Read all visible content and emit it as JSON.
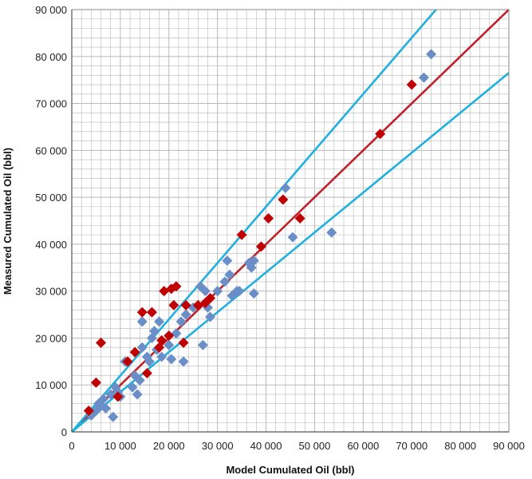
{
  "chart_data": {
    "type": "scatter",
    "title": "",
    "xlabel": "Model Cumulated Oil (bbl)",
    "ylabel": "Measured  Cumulated Oil (bbl)",
    "xlim": [
      0,
      90000
    ],
    "ylim": [
      0,
      90000
    ],
    "x_ticks": [
      0,
      10000,
      20000,
      30000,
      40000,
      50000,
      60000,
      70000,
      80000,
      90000
    ],
    "y_ticks": [
      0,
      10000,
      20000,
      30000,
      40000,
      50000,
      60000,
      70000,
      80000,
      90000
    ],
    "x_tick_labels": [
      "0",
      "10 000",
      "20 000",
      "30 000",
      "40 000",
      "50 000",
      "60 000",
      "70 000",
      "80 000",
      "90 000"
    ],
    "y_tick_labels": [
      "0",
      "10 000",
      "20 000",
      "30 000",
      "40 000",
      "50 000",
      "60 000",
      "70 000",
      "80 000",
      "90 000"
    ],
    "minor_grid_step": 2000,
    "grid": true,
    "legend": "none",
    "colors": {
      "series_blue": "#6a8fc8",
      "series_red": "#c00000",
      "parity_line": "#c0202a",
      "bound_lines": "#1fb0e0",
      "grid": "#b8b8b8"
    },
    "lines": [
      {
        "slope": 1.0,
        "color_key": "parity_line",
        "from_x": 0,
        "to_x": 90000
      },
      {
        "slope": 1.2,
        "color_key": "bound_lines",
        "from_x": 0,
        "to_x": 75000
      },
      {
        "slope": 0.85,
        "color_key": "bound_lines",
        "from_x": 0,
        "to_x": 90000
      }
    ],
    "series": [
      {
        "marker": "diamond",
        "color_key": "series_blue",
        "points": [
          [
            4000,
            3500
          ],
          [
            5000,
            4500
          ],
          [
            5500,
            6000
          ],
          [
            6000,
            5500
          ],
          [
            6500,
            7000
          ],
          [
            7000,
            5000
          ],
          [
            8000,
            8000
          ],
          [
            8500,
            3200
          ],
          [
            9000,
            9500
          ],
          [
            9500,
            8500
          ],
          [
            10000,
            7500
          ],
          [
            11000,
            15000
          ],
          [
            12500,
            9500
          ],
          [
            13000,
            12000
          ],
          [
            13500,
            8000
          ],
          [
            14000,
            11000
          ],
          [
            14500,
            23500
          ],
          [
            14500,
            18000
          ],
          [
            15500,
            16000
          ],
          [
            16000,
            15000
          ],
          [
            16500,
            20000
          ],
          [
            17000,
            21500
          ],
          [
            17500,
            17500
          ],
          [
            18000,
            23500
          ],
          [
            18500,
            16000
          ],
          [
            20000,
            18500
          ],
          [
            20500,
            15500
          ],
          [
            21500,
            21000
          ],
          [
            22500,
            23500
          ],
          [
            23000,
            15000
          ],
          [
            23500,
            25000
          ],
          [
            25000,
            26500
          ],
          [
            26500,
            31000
          ],
          [
            27000,
            18500
          ],
          [
            27500,
            30000
          ],
          [
            28000,
            26500
          ],
          [
            28500,
            24500
          ],
          [
            30000,
            30000
          ],
          [
            31500,
            32000
          ],
          [
            32000,
            36500
          ],
          [
            32500,
            33500
          ],
          [
            33000,
            29000
          ],
          [
            34000,
            30000
          ],
          [
            34500,
            30000
          ],
          [
            36500,
            36000
          ],
          [
            37000,
            35000
          ],
          [
            37500,
            36500
          ],
          [
            37500,
            29500
          ],
          [
            44000,
            52000
          ],
          [
            45500,
            41500
          ],
          [
            53500,
            42500
          ],
          [
            72500,
            75500
          ],
          [
            74000,
            80500
          ]
        ]
      },
      {
        "marker": "diamond",
        "color_key": "series_red",
        "points": [
          [
            3500,
            4500
          ],
          [
            5000,
            10500
          ],
          [
            6000,
            19000
          ],
          [
            9500,
            7500
          ],
          [
            11500,
            15000
          ],
          [
            13000,
            17000
          ],
          [
            14500,
            25500
          ],
          [
            15500,
            12500
          ],
          [
            16500,
            25500
          ],
          [
            18000,
            18000
          ],
          [
            18500,
            19500
          ],
          [
            19000,
            30000
          ],
          [
            20000,
            20500
          ],
          [
            20500,
            30500
          ],
          [
            21000,
            27000
          ],
          [
            21500,
            31000
          ],
          [
            23000,
            19000
          ],
          [
            23500,
            27000
          ],
          [
            26000,
            27000
          ],
          [
            27500,
            27500
          ],
          [
            28500,
            28500
          ],
          [
            35000,
            42000
          ],
          [
            39000,
            39500
          ],
          [
            40500,
            45500
          ],
          [
            43500,
            49500
          ],
          [
            47000,
            45500
          ],
          [
            63500,
            63500
          ],
          [
            70000,
            74000
          ]
        ]
      }
    ]
  }
}
